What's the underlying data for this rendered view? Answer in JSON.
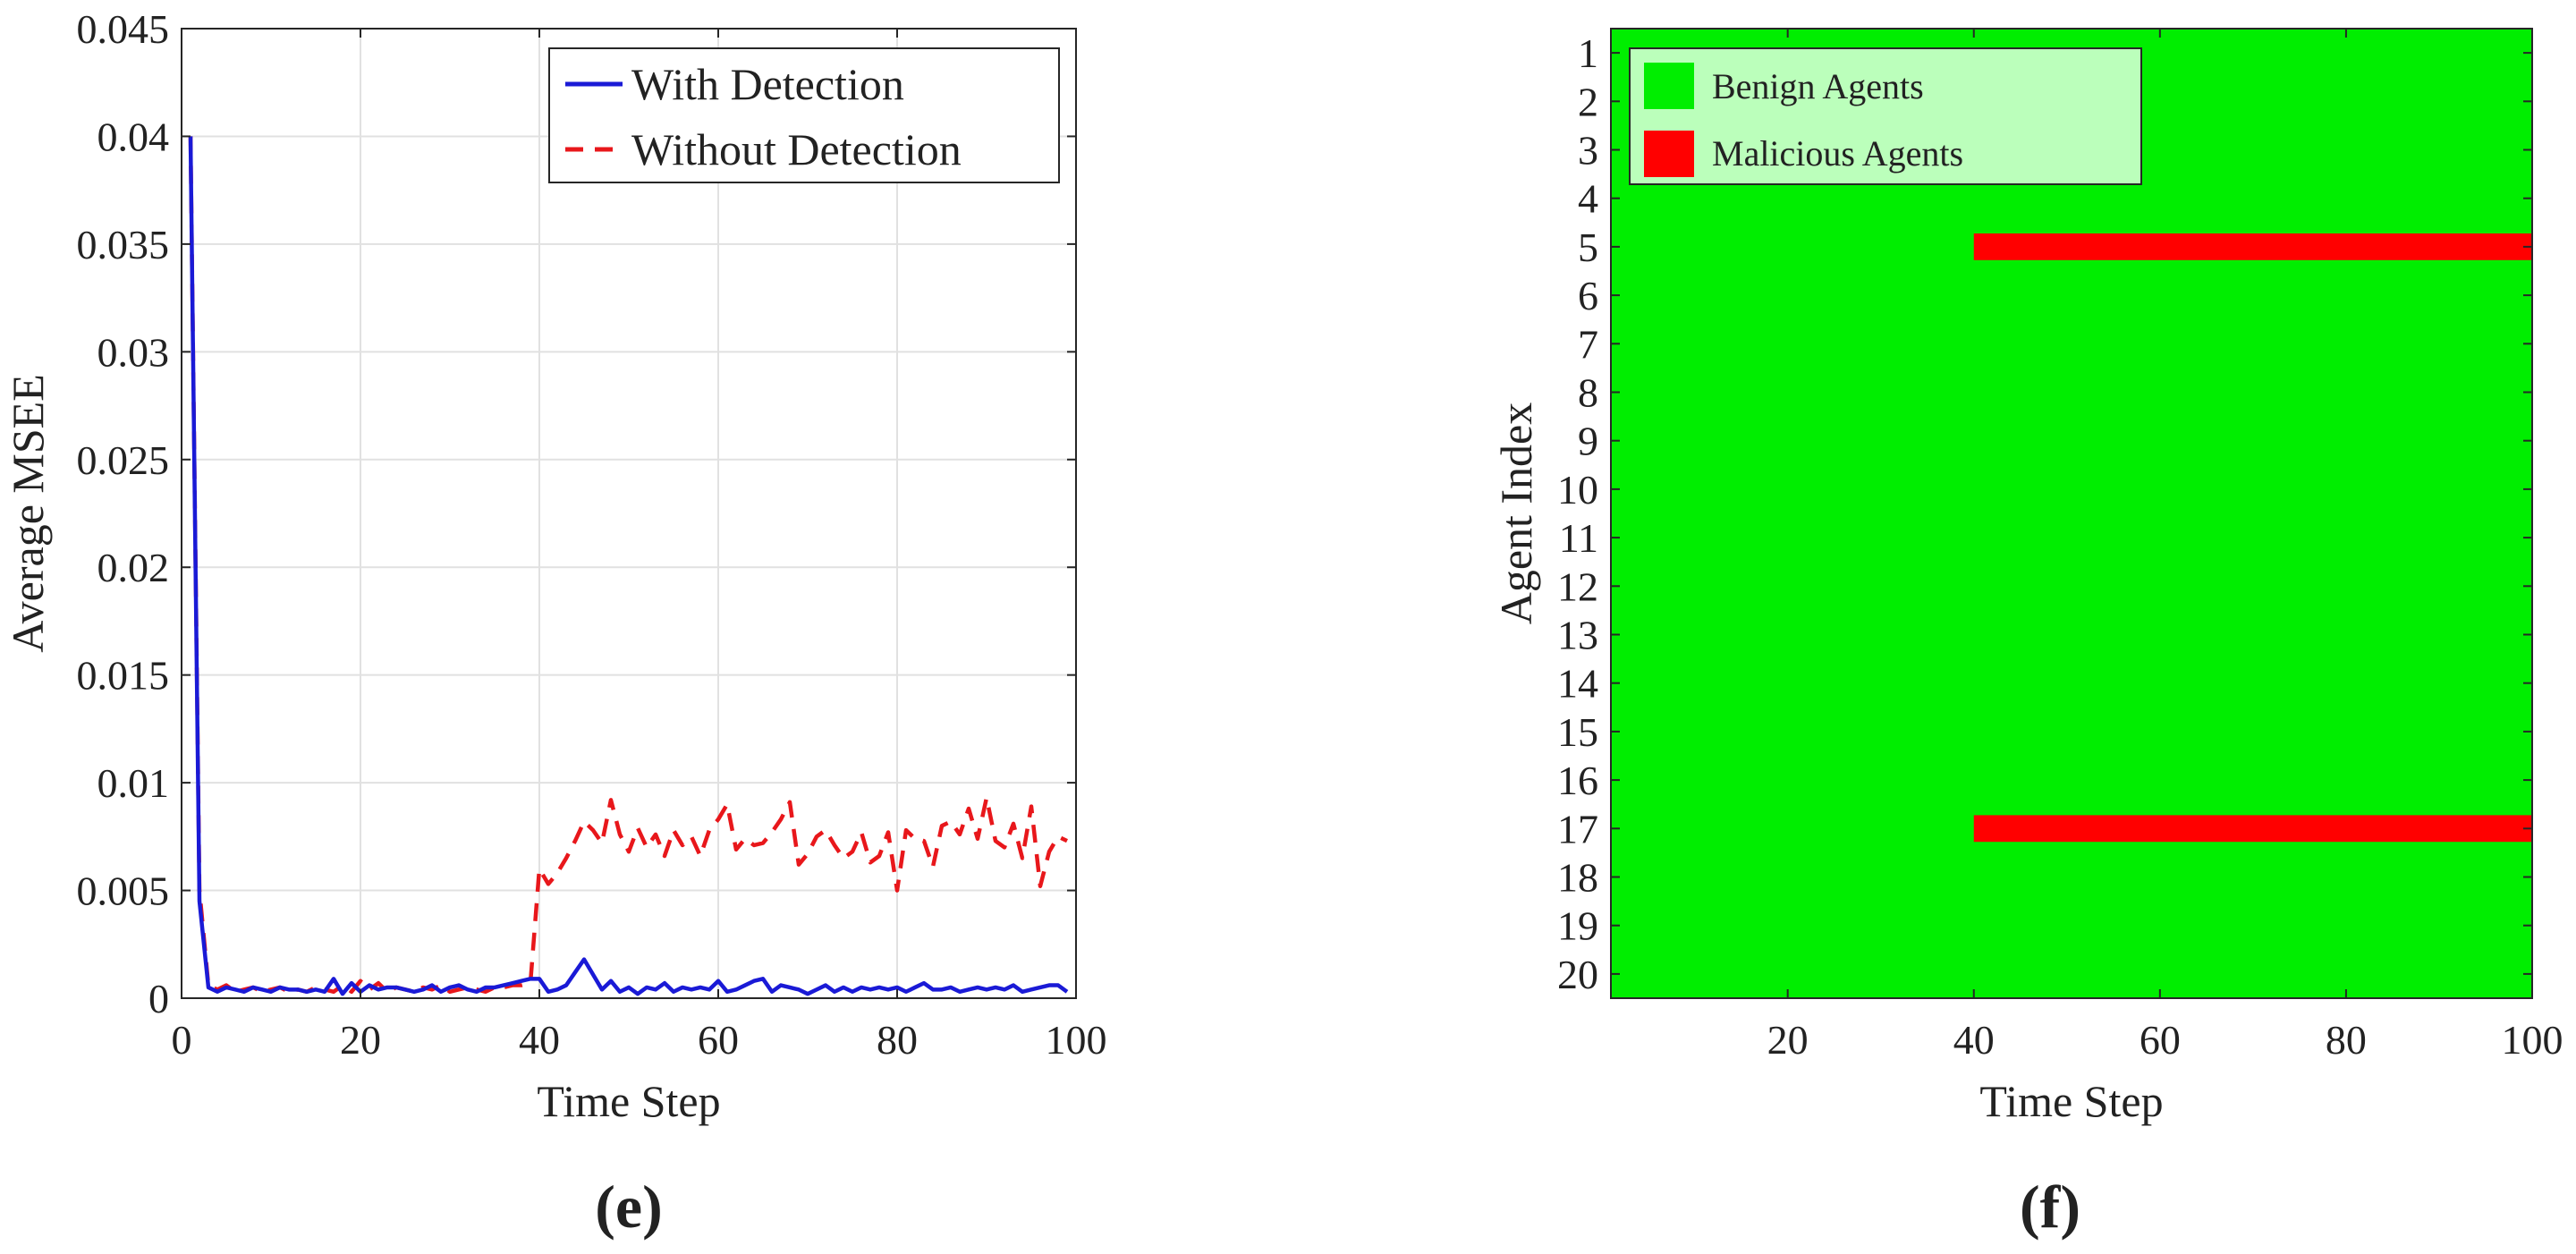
{
  "chart_data": [
    {
      "id": "e",
      "type": "line",
      "caption": "e",
      "xlabel": "Time Step",
      "ylabel": "Average MSEE",
      "xlim": [
        0,
        100
      ],
      "ylim": [
        0,
        0.045
      ],
      "xticks": [
        0,
        20,
        40,
        60,
        80,
        100
      ],
      "yticks": [
        0,
        0.005,
        0.01,
        0.015,
        0.02,
        0.025,
        0.03,
        0.035,
        0.04,
        0.045
      ],
      "ytick_labels": [
        "0",
        "0.005",
        "0.01",
        "0.015",
        "0.02",
        "0.025",
        "0.03",
        "0.035",
        "0.04",
        "0.045"
      ],
      "grid": true,
      "legend_position": "top-right",
      "series": [
        {
          "name": "With Detection",
          "color": "#1a1ad6",
          "style": "solid",
          "x": [
            1,
            2,
            3,
            4,
            5,
            6,
            7,
            8,
            9,
            10,
            11,
            12,
            13,
            14,
            15,
            16,
            17,
            18,
            19,
            20,
            21,
            22,
            23,
            24,
            25,
            26,
            27,
            28,
            29,
            30,
            31,
            32,
            33,
            34,
            35,
            36,
            37,
            38,
            39,
            40,
            41,
            42,
            43,
            44,
            45,
            46,
            47,
            48,
            49,
            50,
            51,
            52,
            53,
            54,
            55,
            56,
            57,
            58,
            59,
            60,
            61,
            62,
            63,
            64,
            65,
            66,
            67,
            68,
            69,
            70,
            71,
            72,
            73,
            74,
            75,
            76,
            77,
            78,
            79,
            80,
            81,
            82,
            83,
            84,
            85,
            86,
            87,
            88,
            89,
            90,
            91,
            92,
            93,
            94,
            95,
            96,
            97,
            98,
            99
          ],
          "y": [
            0.04,
            0.0045,
            0.0005,
            0.0003,
            0.0005,
            0.0004,
            0.0003,
            0.0005,
            0.0004,
            0.0003,
            0.0005,
            0.0004,
            0.0004,
            0.0003,
            0.0004,
            0.0003,
            0.0009,
            0.0002,
            0.0007,
            0.0003,
            0.0006,
            0.0004,
            0.0005,
            0.0005,
            0.0004,
            0.0003,
            0.0004,
            0.0006,
            0.0003,
            0.0005,
            0.0006,
            0.0004,
            0.0003,
            0.0005,
            0.0005,
            0.0006,
            0.0007,
            0.0008,
            0.0009,
            0.0009,
            0.0003,
            0.0004,
            0.0006,
            0.0012,
            0.0018,
            0.0011,
            0.0004,
            0.0008,
            0.0003,
            0.0005,
            0.0002,
            0.0005,
            0.0004,
            0.0007,
            0.0003,
            0.0005,
            0.0004,
            0.0005,
            0.0004,
            0.0008,
            0.0003,
            0.0004,
            0.0006,
            0.0008,
            0.0009,
            0.0003,
            0.0006,
            0.0005,
            0.0004,
            0.0002,
            0.0004,
            0.0006,
            0.0003,
            0.0005,
            0.0003,
            0.0005,
            0.0004,
            0.0005,
            0.0004,
            0.0005,
            0.0003,
            0.0005,
            0.0007,
            0.0004,
            0.0004,
            0.0005,
            0.0003,
            0.0004,
            0.0005,
            0.0004,
            0.0005,
            0.0004,
            0.0006,
            0.0003,
            0.0004,
            0.0005,
            0.0006,
            0.0006,
            0.0003
          ]
        },
        {
          "name": "Without Detection",
          "color": "#e8171b",
          "style": "dashed",
          "x": [
            1,
            2,
            3,
            4,
            5,
            6,
            7,
            8,
            9,
            10,
            11,
            12,
            13,
            14,
            15,
            16,
            17,
            18,
            19,
            20,
            21,
            22,
            23,
            24,
            25,
            26,
            27,
            28,
            29,
            30,
            31,
            32,
            33,
            34,
            35,
            36,
            37,
            38,
            39,
            40,
            41,
            42,
            43,
            44,
            45,
            46,
            47,
            48,
            49,
            50,
            51,
            52,
            53,
            54,
            55,
            56,
            57,
            58,
            59,
            60,
            61,
            62,
            63,
            64,
            65,
            66,
            67,
            68,
            69,
            70,
            71,
            72,
            73,
            74,
            75,
            76,
            77,
            78,
            79,
            80,
            81,
            82,
            83,
            84,
            85,
            86,
            87,
            88,
            89,
            90,
            91,
            92,
            93,
            94,
            95,
            96,
            97,
            98,
            99
          ],
          "y": [
            0.04,
            0.005,
            0.0006,
            0.0004,
            0.0006,
            0.0003,
            0.0004,
            0.0005,
            0.0003,
            0.0004,
            0.0005,
            0.0003,
            0.0004,
            0.0003,
            0.0005,
            0.0004,
            0.0003,
            0.0006,
            0.0003,
            0.0008,
            0.0004,
            0.0007,
            0.0003,
            0.0005,
            0.0004,
            0.0003,
            0.0005,
            0.0004,
            0.0006,
            0.0003,
            0.0004,
            0.0005,
            0.0004,
            0.0003,
            0.0005,
            0.0005,
            0.0006,
            0.0006,
            0.0007,
            0.006,
            0.0053,
            0.0058,
            0.0065,
            0.0073,
            0.0082,
            0.0078,
            0.0072,
            0.0092,
            0.0076,
            0.0068,
            0.0079,
            0.007,
            0.0076,
            0.0066,
            0.0078,
            0.0071,
            0.0075,
            0.0066,
            0.0078,
            0.0083,
            0.009,
            0.0069,
            0.0074,
            0.0071,
            0.0072,
            0.0077,
            0.0083,
            0.0091,
            0.0062,
            0.0067,
            0.0075,
            0.0078,
            0.0071,
            0.0065,
            0.0068,
            0.0077,
            0.0063,
            0.0066,
            0.0077,
            0.005,
            0.0078,
            0.0074,
            0.0073,
            0.0061,
            0.008,
            0.0082,
            0.0076,
            0.0088,
            0.0074,
            0.0093,
            0.0073,
            0.007,
            0.0081,
            0.0065,
            0.0089,
            0.0052,
            0.0068,
            0.0075,
            0.0073
          ]
        }
      ]
    },
    {
      "id": "f",
      "type": "heatmap",
      "caption": "f",
      "xlabel": "Time Step",
      "ylabel": "Agent Index",
      "xlim": [
        1,
        100
      ],
      "xticks": [
        20,
        40,
        60,
        80,
        100
      ],
      "agents": [
        1,
        2,
        3,
        4,
        5,
        6,
        7,
        8,
        9,
        10,
        11,
        12,
        13,
        14,
        15,
        16,
        17,
        18,
        19,
        20
      ],
      "legend_position": "top-left",
      "legend": [
        {
          "name": "Benign Agents",
          "color": "#00ee00"
        },
        {
          "name": "Malicious Agents",
          "color": "#ff0000"
        }
      ],
      "malicious_segments": [
        {
          "agent": 5,
          "start_step": 40,
          "end_step": 100
        },
        {
          "agent": 17,
          "start_step": 40,
          "end_step": 100
        }
      ]
    }
  ]
}
